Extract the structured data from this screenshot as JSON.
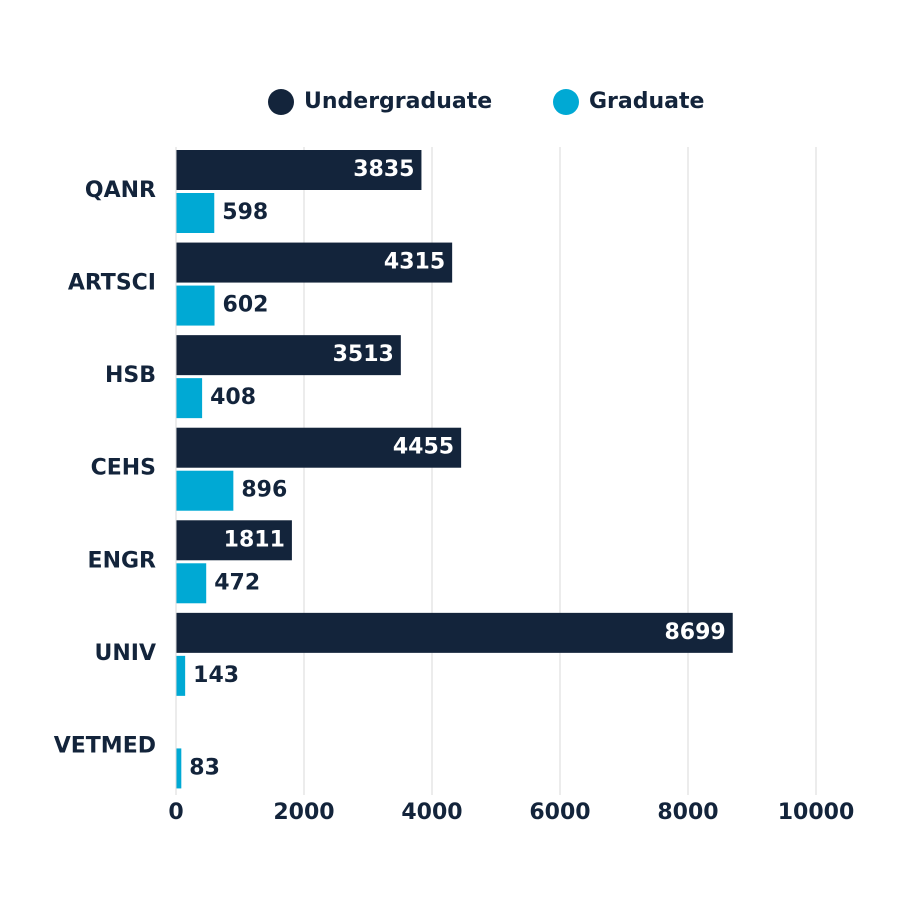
{
  "chart_data": {
    "type": "hbar",
    "categories": [
      "QANR",
      "ARTSCI",
      "HSB",
      "CEHS",
      "ENGR",
      "UNIV",
      "VETMED"
    ],
    "series": [
      {
        "name": "Undergraduate",
        "color": "#13243b",
        "values": [
          3835,
          4315,
          3513,
          4455,
          1811,
          8699,
          null
        ]
      },
      {
        "name": "Graduate",
        "color": "#00a9d4",
        "values": [
          598,
          602,
          408,
          896,
          472,
          143,
          83
        ]
      }
    ],
    "xlim": [
      0,
      10000
    ],
    "xticks": [
      0,
      2000,
      4000,
      6000,
      8000,
      10000
    ],
    "grid": true,
    "legend": "top"
  }
}
